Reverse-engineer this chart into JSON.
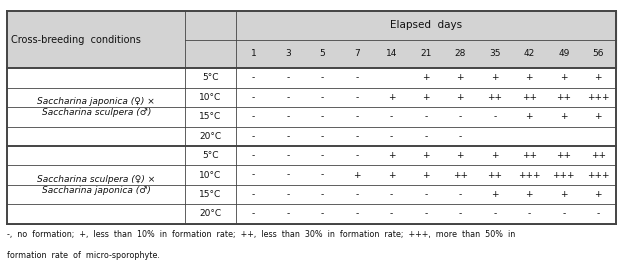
{
  "title": "Elapsed  days",
  "col_header_label": "Cross-breeding  conditions",
  "elapsed_days": [
    "1",
    "3",
    "5",
    "7",
    "14",
    "21",
    "28",
    "35",
    "42",
    "49",
    "56"
  ],
  "group1_label_line1": "Saccharina japonica (♀) ×",
  "group1_label_line2": "Saccharina sculpera (♂)",
  "group2_label_line1": "Saccharina sculpera (♀) ×",
  "group2_label_line2": "Saccharina japonica (♂)",
  "temperatures": [
    "5°C",
    "10°C",
    "15°C",
    "20°C"
  ],
  "group1_data": [
    [
      "-",
      "-",
      "-",
      "-",
      "",
      "+",
      "+",
      "+",
      "+",
      "+",
      "+"
    ],
    [
      "-",
      "-",
      "-",
      "-",
      "+",
      "+",
      "+",
      "++",
      "++",
      "++",
      "+++"
    ],
    [
      "-",
      "-",
      "-",
      "-",
      "-",
      "-",
      "-",
      "-",
      "+",
      "+",
      "+"
    ],
    [
      "-",
      "-",
      "-",
      "-",
      "-",
      "-",
      "-",
      "",
      "",
      "",
      ""
    ]
  ],
  "group2_data": [
    [
      "-",
      "-",
      "-",
      "-",
      "+",
      "+",
      "+",
      "+",
      "++",
      "++",
      "++"
    ],
    [
      "-",
      "-",
      "-",
      "+",
      "+",
      "+",
      "++",
      "++",
      "+++",
      "+++",
      "+++"
    ],
    [
      "-",
      "-",
      "-",
      "-",
      "-",
      "-",
      "-",
      "+",
      "+",
      "+",
      "+"
    ],
    [
      "-",
      "-",
      "-",
      "-",
      "-",
      "-",
      "-",
      "-",
      "-",
      "-",
      "-"
    ]
  ],
  "footnote_line1": "-,  no  formation;  +,  less  than  10%  in  formation  rate;  ++,  less  than  30%  in  formation  rate;  +++,  more  than  50%  in",
  "footnote_line2": "formation  rate  of  micro-sporophyte.",
  "header_bg": "#d3d3d3",
  "white": "#ffffff",
  "border_color": "#444444",
  "text_color": "#111111",
  "figsize": [
    6.23,
    2.71
  ],
  "dpi": 100
}
